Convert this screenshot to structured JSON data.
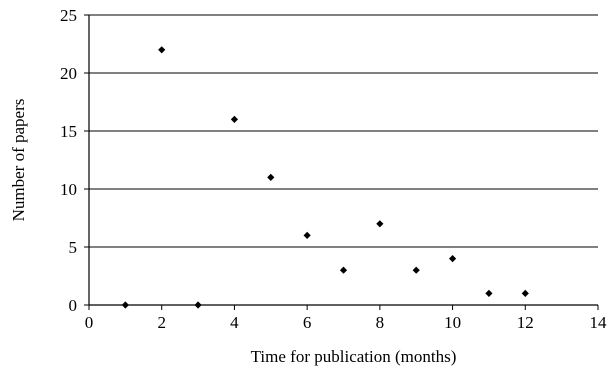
{
  "chart_data": {
    "type": "scatter",
    "title": "",
    "xlabel": "Time for publication (months)",
    "ylabel": "Number of papers",
    "xlim": [
      0,
      14
    ],
    "ylim": [
      0,
      25
    ],
    "x_ticks": [
      0,
      2,
      4,
      6,
      8,
      10,
      12,
      14
    ],
    "y_ticks": [
      0,
      5,
      10,
      15,
      20,
      25
    ],
    "grid": "horizontal",
    "marker": "diamond",
    "marker_color": "#000000",
    "series": [
      {
        "x": [
          1,
          2,
          3,
          4,
          5,
          6,
          7,
          8,
          9,
          10,
          11,
          12
        ],
        "y": [
          0,
          22,
          0,
          16,
          11,
          6,
          3,
          7,
          3,
          4,
          1,
          1
        ]
      }
    ]
  }
}
